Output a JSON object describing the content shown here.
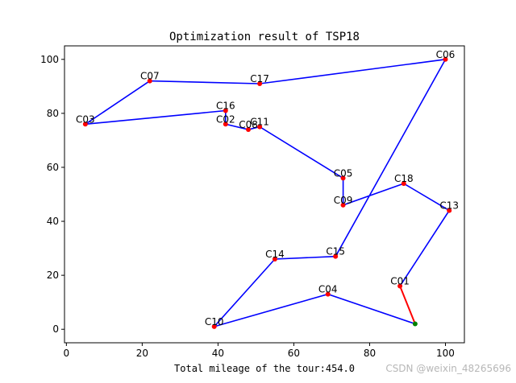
{
  "chart_data": {
    "type": "scatter",
    "title": "Optimization result of TSP18",
    "xlabel": "Total mileage of the tour:454.0",
    "ylabel": "",
    "xlim": [
      -0.5,
      105
    ],
    "ylim": [
      -5,
      105
    ],
    "xticks": [
      0,
      20,
      40,
      60,
      80,
      100
    ],
    "yticks": [
      0,
      20,
      40,
      60,
      80,
      100
    ],
    "grid": false,
    "cities": [
      {
        "name": "C01",
        "x": 88,
        "y": 16
      },
      {
        "name": "C02",
        "x": 42,
        "y": 76
      },
      {
        "name": "C03",
        "x": 5,
        "y": 76
      },
      {
        "name": "C04",
        "x": 69,
        "y": 13
      },
      {
        "name": "C05",
        "x": 73,
        "y": 56
      },
      {
        "name": "C06",
        "x": 100,
        "y": 100
      },
      {
        "name": "C07",
        "x": 22,
        "y": 92
      },
      {
        "name": "C08",
        "x": 48,
        "y": 74
      },
      {
        "name": "C09",
        "x": 73,
        "y": 46
      },
      {
        "name": "C10",
        "x": 39,
        "y": 1
      },
      {
        "name": "C11",
        "x": 51,
        "y": 75
      },
      {
        "name": "C13",
        "x": 101,
        "y": 44
      },
      {
        "name": "C14",
        "x": 55,
        "y": 26
      },
      {
        "name": "C15",
        "x": 71,
        "y": 27
      },
      {
        "name": "C16",
        "x": 42,
        "y": 81
      },
      {
        "name": "C17",
        "x": 51,
        "y": 91
      },
      {
        "name": "C18",
        "x": 89,
        "y": 54
      }
    ],
    "start": {
      "x": 92,
      "y": 2
    },
    "tour_order": [
      "C04",
      "C10",
      "C14",
      "C15",
      "C06",
      "C17",
      "C07",
      "C03",
      "C16",
      "C02",
      "C08",
      "C11",
      "C05",
      "C09",
      "C18",
      "C13",
      "C01"
    ],
    "colors": {
      "tour": "#0000ff",
      "final_leg": "#ff0000",
      "city": "#ff0000",
      "start": "#008000"
    }
  },
  "watermark": "CSDN @weixin_48265696"
}
